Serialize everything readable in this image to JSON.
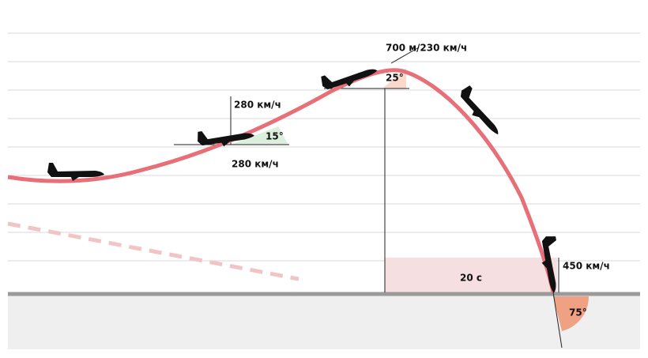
{
  "labels": {
    "peak": "700 м/230 км/ч",
    "peak_angle": "25°",
    "climb_speed_top": "280 км/ч",
    "climb_angle": "15°",
    "climb_speed_bottom": "280 км/ч",
    "fall_time": "20 с",
    "impact_speed": "450 км/ч",
    "impact_angle": "75°"
  }
}
